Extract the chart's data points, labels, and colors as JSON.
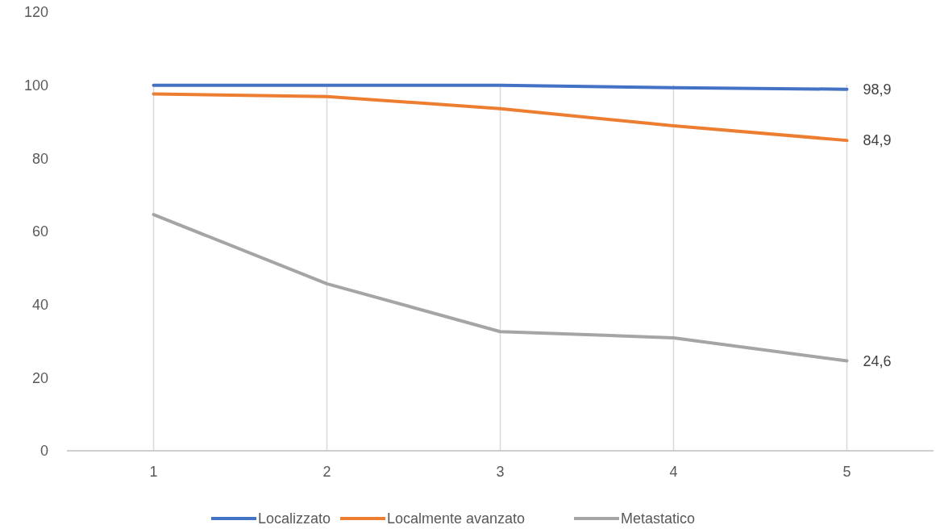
{
  "chart_data": {
    "type": "line",
    "categories": [
      "1",
      "2",
      "3",
      "4",
      "5"
    ],
    "ylim": [
      0,
      120
    ],
    "yticks": [
      0,
      20,
      40,
      60,
      80,
      100,
      120
    ],
    "grid": "x",
    "legend": "bottom",
    "series": [
      {
        "name": "Localizzato",
        "color": "#4472c4",
        "values": [
          100,
          100,
          100,
          99.3,
          98.9
        ],
        "value_labels": [
          null,
          null,
          null,
          null,
          "98,9"
        ]
      },
      {
        "name": "Localmente avanzato",
        "color": "#ed7d31",
        "values": [
          97.6,
          96.9,
          93.6,
          88.9,
          84.9
        ],
        "value_labels": [
          null,
          null,
          null,
          null,
          "84,9"
        ]
      },
      {
        "name": "Metastatico",
        "color": "#a5a5a5",
        "values": [
          64.6,
          45.7,
          32.6,
          30.9,
          24.6
        ],
        "value_labels": [
          null,
          null,
          null,
          null,
          "24,6"
        ]
      }
    ]
  }
}
